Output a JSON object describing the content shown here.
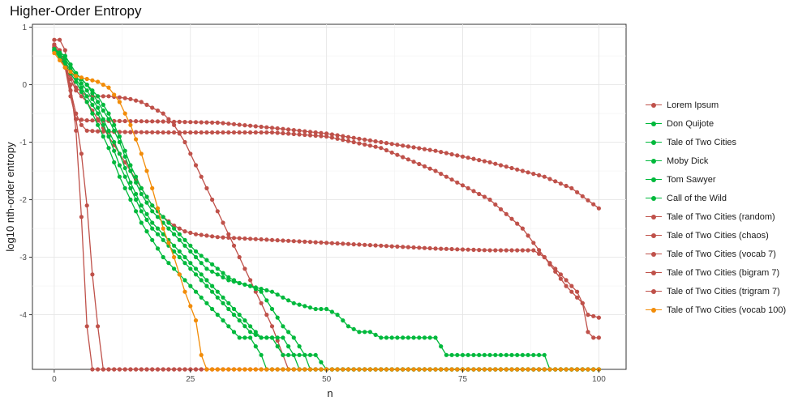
{
  "chart_data": {
    "type": "line",
    "title": "Higher-Order Entropy",
    "xlabel": "n",
    "ylabel": "log10 nth-order entropy",
    "xlim": [
      -4,
      105
    ],
    "ylim": [
      -4.95,
      1.05
    ],
    "xticks": [
      0,
      25,
      50,
      75,
      100
    ],
    "yticks": [
      -4,
      -3,
      -2,
      -1,
      0,
      1
    ],
    "grid": true,
    "legend_position": "right",
    "colors": {
      "red": "#bf514a",
      "green": "#00b93c",
      "orange": "#f28c08"
    },
    "series": [
      {
        "name": "Lorem Ipsum",
        "color": "#bf514a",
        "points": [
          [
            0,
            0.65
          ],
          [
            1,
            0.55
          ],
          [
            2,
            0.3
          ],
          [
            3,
            0.0
          ],
          [
            4,
            -0.8
          ],
          [
            5,
            -2.3
          ],
          [
            6,
            -4.2
          ],
          [
            7,
            -4.95
          ],
          [
            8,
            -4.95
          ],
          [
            12,
            -4.95
          ],
          [
            20,
            -4.95
          ],
          [
            40,
            -4.95
          ],
          [
            60,
            -4.95
          ],
          [
            80,
            -4.95
          ],
          [
            100,
            -4.95
          ]
        ]
      },
      {
        "name": "Don Quijote",
        "color": "#00b93c",
        "points": [
          [
            0,
            0.62
          ],
          [
            2,
            0.5
          ],
          [
            4,
            0.2
          ],
          [
            6,
            0.0
          ],
          [
            8,
            -0.2
          ],
          [
            10,
            -0.5
          ],
          [
            12,
            -0.9
          ],
          [
            14,
            -1.4
          ],
          [
            16,
            -1.8
          ],
          [
            18,
            -2.1
          ],
          [
            20,
            -2.3
          ],
          [
            22,
            -2.5
          ],
          [
            24,
            -2.7
          ],
          [
            26,
            -2.9
          ],
          [
            28,
            -3.05
          ],
          [
            30,
            -3.2
          ],
          [
            32,
            -3.35
          ],
          [
            34,
            -3.45
          ],
          [
            36,
            -3.5
          ],
          [
            38,
            -3.55
          ],
          [
            40,
            -3.6
          ],
          [
            42,
            -3.7
          ],
          [
            44,
            -3.8
          ],
          [
            46,
            -3.85
          ],
          [
            48,
            -3.9
          ],
          [
            50,
            -3.9
          ],
          [
            52,
            -4.0
          ],
          [
            54,
            -4.2
          ],
          [
            56,
            -4.3
          ],
          [
            58,
            -4.3
          ],
          [
            60,
            -4.4
          ],
          [
            62,
            -4.4
          ],
          [
            66,
            -4.4
          ],
          [
            70,
            -4.4
          ],
          [
            72,
            -4.7
          ],
          [
            76,
            -4.7
          ],
          [
            80,
            -4.7
          ],
          [
            86,
            -4.7
          ],
          [
            90,
            -4.7
          ],
          [
            91,
            -4.95
          ],
          [
            100,
            -4.95
          ]
        ]
      },
      {
        "name": "Tale of Two Cities",
        "color": "#00b93c",
        "points": [
          [
            0,
            0.6
          ],
          [
            2,
            0.5
          ],
          [
            4,
            0.2
          ],
          [
            6,
            0.0
          ],
          [
            8,
            -0.3
          ],
          [
            10,
            -0.6
          ],
          [
            12,
            -1.0
          ],
          [
            14,
            -1.5
          ],
          [
            16,
            -1.9
          ],
          [
            18,
            -2.2
          ],
          [
            20,
            -2.4
          ],
          [
            22,
            -2.6
          ],
          [
            24,
            -2.8
          ],
          [
            26,
            -3.0
          ],
          [
            28,
            -3.2
          ],
          [
            30,
            -3.3
          ],
          [
            32,
            -3.4
          ],
          [
            34,
            -3.45
          ],
          [
            36,
            -3.5
          ],
          [
            38,
            -3.6
          ],
          [
            40,
            -3.9
          ],
          [
            42,
            -4.2
          ],
          [
            44,
            -4.4
          ],
          [
            46,
            -4.7
          ],
          [
            47,
            -4.95
          ],
          [
            60,
            -4.95
          ],
          [
            100,
            -4.95
          ]
        ]
      },
      {
        "name": "Moby Dick",
        "color": "#00b93c",
        "points": [
          [
            0,
            0.62
          ],
          [
            2,
            0.45
          ],
          [
            4,
            0.15
          ],
          [
            6,
            -0.1
          ],
          [
            8,
            -0.4
          ],
          [
            10,
            -0.8
          ],
          [
            12,
            -1.2
          ],
          [
            14,
            -1.7
          ],
          [
            16,
            -2.1
          ],
          [
            18,
            -2.4
          ],
          [
            20,
            -2.6
          ],
          [
            22,
            -2.8
          ],
          [
            24,
            -3.0
          ],
          [
            26,
            -3.2
          ],
          [
            28,
            -3.4
          ],
          [
            30,
            -3.6
          ],
          [
            32,
            -3.8
          ],
          [
            34,
            -4.0
          ],
          [
            36,
            -4.2
          ],
          [
            38,
            -4.4
          ],
          [
            40,
            -4.4
          ],
          [
            42,
            -4.4
          ],
          [
            44,
            -4.7
          ],
          [
            46,
            -4.7
          ],
          [
            48,
            -4.7
          ],
          [
            50,
            -4.95
          ],
          [
            100,
            -4.95
          ]
        ]
      },
      {
        "name": "Tom Sawyer",
        "color": "#00b93c",
        "points": [
          [
            0,
            0.6
          ],
          [
            2,
            0.4
          ],
          [
            4,
            0.1
          ],
          [
            6,
            -0.2
          ],
          [
            8,
            -0.5
          ],
          [
            10,
            -0.9
          ],
          [
            12,
            -1.4
          ],
          [
            14,
            -1.8
          ],
          [
            16,
            -2.2
          ],
          [
            18,
            -2.5
          ],
          [
            20,
            -2.7
          ],
          [
            22,
            -2.9
          ],
          [
            24,
            -3.1
          ],
          [
            26,
            -3.3
          ],
          [
            28,
            -3.5
          ],
          [
            30,
            -3.7
          ],
          [
            32,
            -3.9
          ],
          [
            34,
            -4.1
          ],
          [
            36,
            -4.3
          ],
          [
            38,
            -4.4
          ],
          [
            40,
            -4.4
          ],
          [
            42,
            -4.7
          ],
          [
            44,
            -4.7
          ],
          [
            45,
            -4.95
          ],
          [
            100,
            -4.95
          ]
        ]
      },
      {
        "name": "Call of the Wild",
        "color": "#00b93c",
        "points": [
          [
            0,
            0.58
          ],
          [
            2,
            0.35
          ],
          [
            4,
            0.05
          ],
          [
            6,
            -0.3
          ],
          [
            8,
            -0.7
          ],
          [
            10,
            -1.1
          ],
          [
            12,
            -1.6
          ],
          [
            14,
            -2.0
          ],
          [
            16,
            -2.4
          ],
          [
            18,
            -2.7
          ],
          [
            20,
            -3.0
          ],
          [
            22,
            -3.2
          ],
          [
            24,
            -3.4
          ],
          [
            26,
            -3.6
          ],
          [
            28,
            -3.8
          ],
          [
            30,
            -4.0
          ],
          [
            32,
            -4.2
          ],
          [
            34,
            -4.4
          ],
          [
            36,
            -4.4
          ],
          [
            38,
            -4.7
          ],
          [
            39,
            -4.95
          ],
          [
            100,
            -4.95
          ]
        ]
      },
      {
        "name": "Tale of Two Cities (random)",
        "color": "#bf514a",
        "points": [
          [
            0,
            0.78
          ],
          [
            1,
            0.78
          ],
          [
            2,
            0.6
          ],
          [
            3,
            -0.2
          ],
          [
            4,
            -0.6
          ],
          [
            6,
            -0.62
          ],
          [
            10,
            -0.63
          ],
          [
            20,
            -0.64
          ],
          [
            30,
            -0.66
          ],
          [
            40,
            -0.75
          ],
          [
            50,
            -0.85
          ],
          [
            60,
            -1.0
          ],
          [
            70,
            -1.15
          ],
          [
            80,
            -1.35
          ],
          [
            90,
            -1.6
          ],
          [
            95,
            -1.8
          ],
          [
            100,
            -2.15
          ]
        ]
      },
      {
        "name": "Tale of Two Cities (chaos)",
        "color": "#bf514a",
        "points": [
          [
            0,
            0.65
          ],
          [
            1,
            0.55
          ],
          [
            2,
            0.3
          ],
          [
            3,
            -0.1
          ],
          [
            4,
            -0.5
          ],
          [
            5,
            -0.7
          ],
          [
            6,
            -0.8
          ],
          [
            10,
            -0.82
          ],
          [
            20,
            -0.83
          ],
          [
            30,
            -0.83
          ],
          [
            40,
            -0.83
          ],
          [
            50,
            -0.9
          ],
          [
            60,
            -1.1
          ],
          [
            70,
            -1.5
          ],
          [
            80,
            -2.0
          ],
          [
            86,
            -2.5
          ],
          [
            90,
            -3.0
          ],
          [
            94,
            -3.5
          ],
          [
            97,
            -3.8
          ],
          [
            98,
            -4.3
          ],
          [
            99,
            -4.4
          ],
          [
            100,
            -4.4
          ]
        ]
      },
      {
        "name": "Tale of Two Cities (vocab 7)",
        "color": "#bf514a",
        "points": [
          [
            0,
            0.7
          ],
          [
            1,
            0.6
          ],
          [
            2,
            0.3
          ],
          [
            3,
            -0.2
          ],
          [
            4,
            -0.6
          ],
          [
            5,
            -1.2
          ],
          [
            6,
            -2.1
          ],
          [
            7,
            -3.3
          ],
          [
            8,
            -4.2
          ],
          [
            9,
            -4.95
          ],
          [
            20,
            -4.95
          ],
          [
            100,
            -4.95
          ]
        ]
      },
      {
        "name": "Tale of Two Cities (bigram 7)",
        "color": "#bf514a",
        "points": [
          [
            0,
            0.65
          ],
          [
            2,
            0.3
          ],
          [
            4,
            -0.1
          ],
          [
            6,
            -0.3
          ],
          [
            8,
            -0.6
          ],
          [
            10,
            -0.9
          ],
          [
            12,
            -1.2
          ],
          [
            14,
            -1.5
          ],
          [
            16,
            -1.8
          ],
          [
            18,
            -2.1
          ],
          [
            20,
            -2.3
          ],
          [
            22,
            -2.45
          ],
          [
            24,
            -2.55
          ],
          [
            26,
            -2.6
          ],
          [
            30,
            -2.65
          ],
          [
            40,
            -2.7
          ],
          [
            50,
            -2.75
          ],
          [
            60,
            -2.8
          ],
          [
            70,
            -2.85
          ],
          [
            80,
            -2.88
          ],
          [
            84,
            -2.88
          ],
          [
            88,
            -2.88
          ],
          [
            90,
            -3.0
          ],
          [
            92,
            -3.2
          ],
          [
            94,
            -3.4
          ],
          [
            96,
            -3.6
          ],
          [
            98,
            -4.0
          ],
          [
            100,
            -4.05
          ]
        ]
      },
      {
        "name": "Tale of Two Cities (trigram 7)",
        "color": "#bf514a",
        "points": [
          [
            0,
            0.68
          ],
          [
            2,
            0.4
          ],
          [
            4,
            -0.05
          ],
          [
            6,
            -0.2
          ],
          [
            8,
            -0.2
          ],
          [
            10,
            -0.2
          ],
          [
            12,
            -0.22
          ],
          [
            14,
            -0.25
          ],
          [
            16,
            -0.3
          ],
          [
            18,
            -0.4
          ],
          [
            20,
            -0.5
          ],
          [
            22,
            -0.7
          ],
          [
            24,
            -1.0
          ],
          [
            26,
            -1.4
          ],
          [
            28,
            -1.8
          ],
          [
            30,
            -2.2
          ],
          [
            32,
            -2.6
          ],
          [
            34,
            -3.0
          ],
          [
            36,
            -3.4
          ],
          [
            38,
            -3.8
          ],
          [
            40,
            -4.2
          ],
          [
            42,
            -4.7
          ],
          [
            43,
            -4.95
          ],
          [
            100,
            -4.95
          ]
        ]
      },
      {
        "name": "Tale of Two Cities (vocab 100)",
        "color": "#f28c08",
        "points": [
          [
            0,
            0.55
          ],
          [
            2,
            0.3
          ],
          [
            4,
            0.15
          ],
          [
            6,
            0.1
          ],
          [
            8,
            0.05
          ],
          [
            10,
            -0.05
          ],
          [
            12,
            -0.3
          ],
          [
            14,
            -0.7
          ],
          [
            16,
            -1.2
          ],
          [
            18,
            -1.8
          ],
          [
            20,
            -2.5
          ],
          [
            22,
            -3.0
          ],
          [
            24,
            -3.6
          ],
          [
            26,
            -4.1
          ],
          [
            27,
            -4.7
          ],
          [
            28,
            -4.95
          ],
          [
            40,
            -4.95
          ],
          [
            100,
            -4.95
          ]
        ]
      }
    ]
  }
}
